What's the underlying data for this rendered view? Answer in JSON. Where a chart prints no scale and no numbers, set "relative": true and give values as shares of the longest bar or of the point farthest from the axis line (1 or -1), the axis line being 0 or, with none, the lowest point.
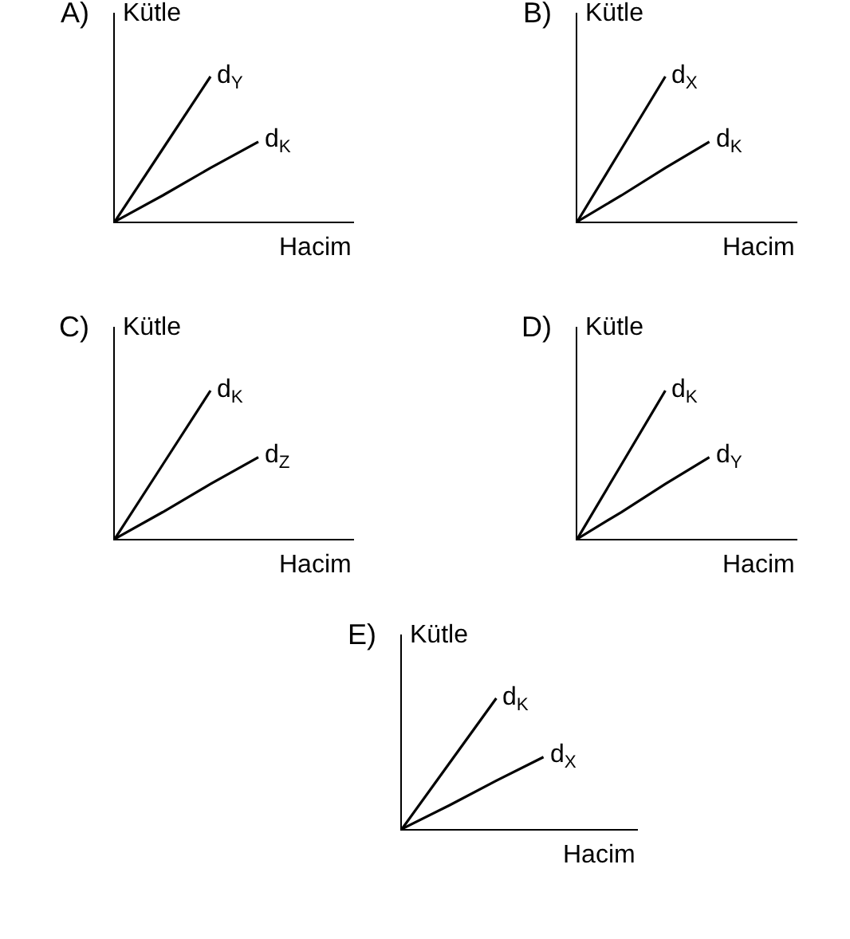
{
  "chart_data": [
    {
      "type": "line",
      "title": "A)",
      "xlabel": "Hacim",
      "ylabel": "Kütle",
      "relative": true,
      "categories": [
        null,
        null,
        null,
        null,
        null,
        null
      ],
      "marker": "none",
      "series": [
        {
          "name": "d$_{Y}$",
          "color": "#000000",
          "values": [
            0,
            0.5,
            1,
            null,
            null,
            null
          ]
        },
        {
          "name": "d$_{K}$",
          "color": "#000000",
          "values": [
            0,
            0.18,
            0.37,
            0.55,
            null,
            null
          ]
        }
      ]
    },
    {
      "type": "line",
      "title": "B)",
      "xlabel": "Hacim",
      "ylabel": "Kütle",
      "relative": true,
      "categories": [
        null,
        null,
        null,
        null,
        null,
        null
      ],
      "marker": "none",
      "series": [
        {
          "name": "d$_{X}$",
          "color": "#000000",
          "values": [
            0,
            0.5,
            1,
            null,
            null,
            null
          ]
        },
        {
          "name": "d$_{K}$",
          "color": "#000000",
          "values": [
            0,
            0.18,
            0.37,
            0.55,
            null,
            null
          ]
        }
      ]
    },
    {
      "type": "line",
      "title": "C)",
      "xlabel": "Hacim",
      "ylabel": "Kütle",
      "relative": true,
      "categories": [
        null,
        null,
        null,
        null,
        null,
        null
      ],
      "marker": "none",
      "series": [
        {
          "name": "d$_{K}$",
          "color": "#000000",
          "values": [
            0,
            0.5,
            1,
            null,
            null,
            null
          ]
        },
        {
          "name": "d$_{Z}$",
          "color": "#000000",
          "values": [
            0,
            0.18,
            0.37,
            0.55,
            null,
            null
          ]
        }
      ]
    },
    {
      "type": "line",
      "title": "D)",
      "xlabel": "Hacim",
      "ylabel": "Kütle",
      "relative": true,
      "categories": [
        null,
        null,
        null,
        null,
        null,
        null
      ],
      "marker": "none",
      "series": [
        {
          "name": "d$_{K}$",
          "color": "#000000",
          "values": [
            0,
            0.5,
            1,
            null,
            null,
            null
          ]
        },
        {
          "name": "d$_{Y}$",
          "color": "#000000",
          "values": [
            0,
            0.18,
            0.37,
            0.55,
            null,
            null
          ]
        }
      ]
    },
    {
      "type": "line",
      "title": "E)",
      "xlabel": "Hacim",
      "ylabel": "Kütle",
      "relative": true,
      "categories": [
        null,
        null,
        null,
        null,
        null,
        null
      ],
      "marker": "none",
      "series": [
        {
          "name": "d$_{K}$",
          "color": "#000000",
          "values": [
            0,
            0.5,
            1,
            null,
            null,
            null
          ]
        },
        {
          "name": "d$_{X}$",
          "color": "#000000",
          "values": [
            0,
            0.18,
            0.37,
            0.55,
            null,
            null
          ]
        }
      ]
    }
  ]
}
